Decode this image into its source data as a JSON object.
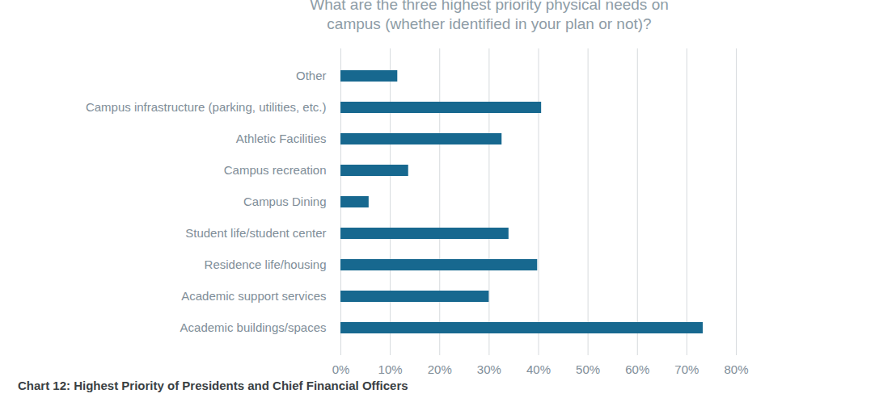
{
  "chart_data": {
    "type": "bar",
    "orientation": "horizontal",
    "title": "What are the three highest priority physical needs on campus (whether identified in your plan or not)?",
    "caption": "Chart 12: Highest Priority of Presidents and Chief Financial Officers",
    "categories": [
      "Other",
      "Campus infrastructure (parking, utilities, etc.)",
      "Athletic Facilities",
      "Campus recreation",
      "Campus Dining",
      "Student life/student center",
      "Residence life/housing",
      "Academic support services",
      "Academic buildings/spaces"
    ],
    "values": [
      11.5,
      40.6,
      32.6,
      13.7,
      5.7,
      34.0,
      39.8,
      30.0,
      73.3
    ],
    "color": "#17688f",
    "xlim": [
      0,
      80
    ],
    "xticks": [
      {
        "value": 0,
        "label": "0%"
      },
      {
        "value": 10,
        "label": "10%"
      },
      {
        "value": 20,
        "label": "20%"
      },
      {
        "value": 30,
        "label": "30%"
      },
      {
        "value": 40,
        "label": "40%"
      },
      {
        "value": 50,
        "label": "50%"
      },
      {
        "value": 60,
        "label": "60%"
      },
      {
        "value": 70,
        "label": "70%"
      },
      {
        "value": 80,
        "label": "80%"
      }
    ],
    "grid": true
  }
}
